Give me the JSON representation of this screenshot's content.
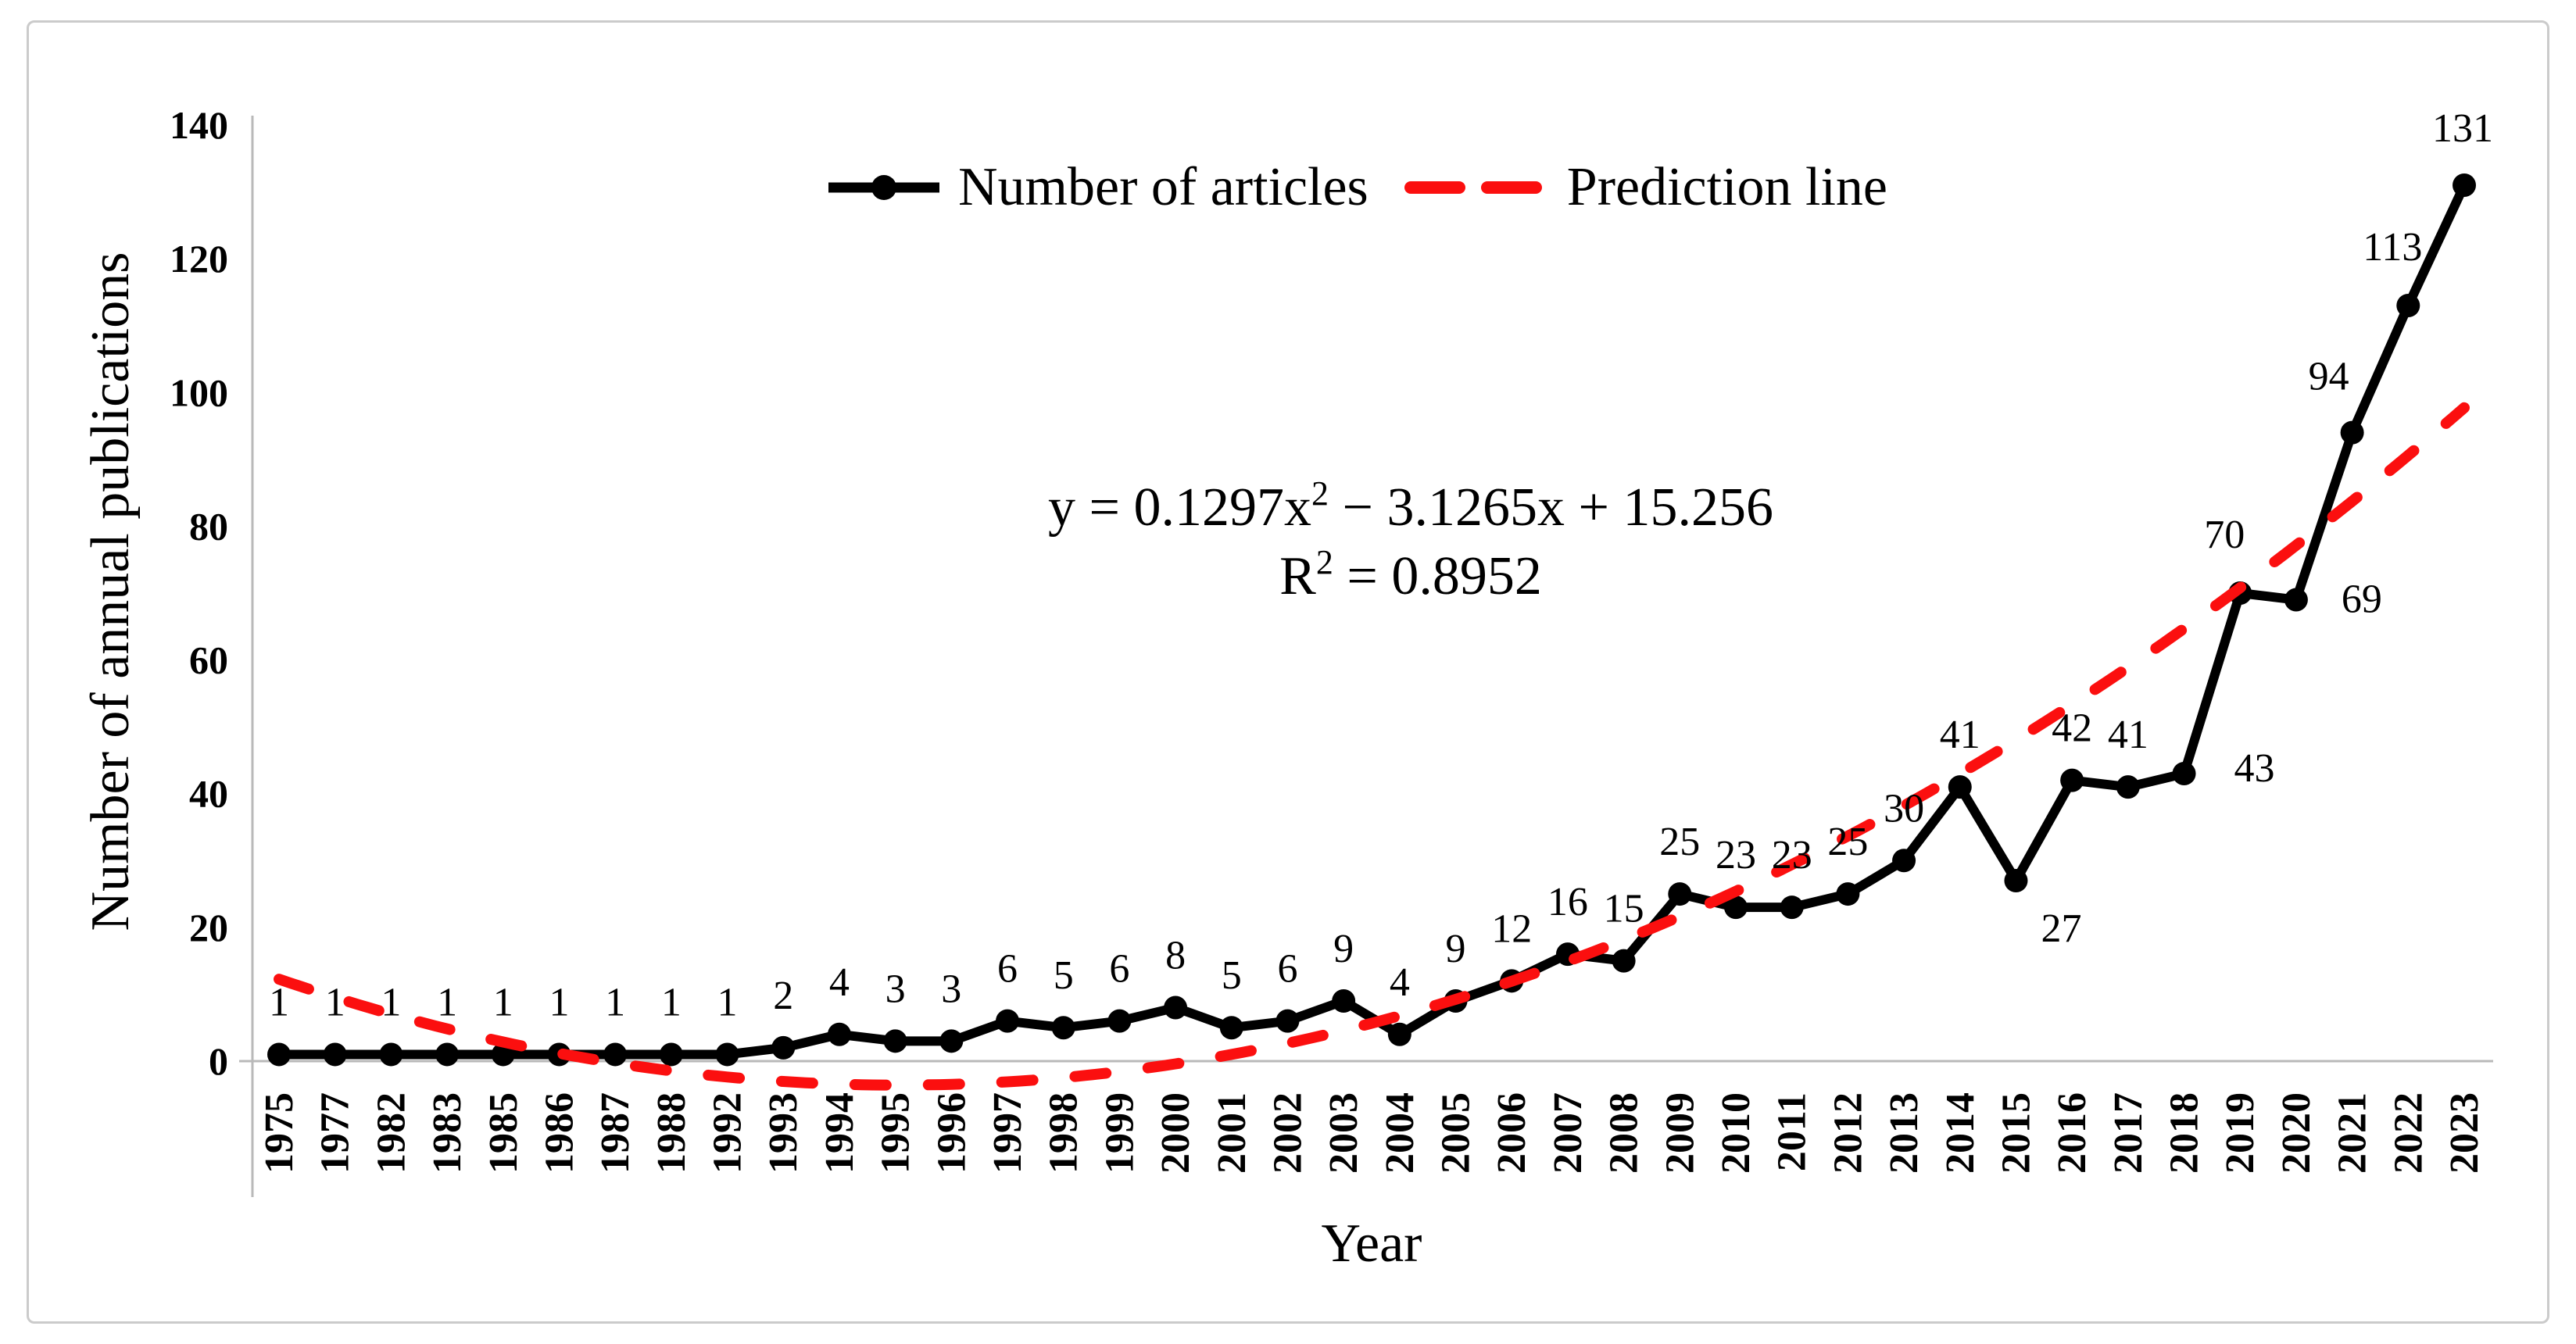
{
  "figure": {
    "background": "#ffffff",
    "border_color": "#cbcbcb"
  },
  "chart_data": {
    "type": "line",
    "title": "",
    "xlabel": "Year",
    "ylabel": "Number of annual publications",
    "ylim": [
      0,
      140
    ],
    "yticks": [
      0,
      20,
      40,
      60,
      80,
      100,
      120,
      140
    ],
    "grid": false,
    "legend_position": "top-center",
    "axis_color": "#b9b9b9",
    "categories": [
      "1975",
      "1977",
      "1982",
      "1983",
      "1985",
      "1986",
      "1987",
      "1988",
      "1992",
      "1993",
      "1994",
      "1995",
      "1996",
      "1997",
      "1998",
      "1999",
      "2000",
      "2001",
      "2002",
      "2003",
      "2004",
      "2005",
      "2006",
      "2007",
      "2008",
      "2009",
      "2010",
      "2011",
      "2012",
      "2013",
      "2014",
      "2015",
      "2016",
      "2017",
      "2018",
      "2019",
      "2020",
      "2021",
      "2022",
      "2023"
    ],
    "series": [
      {
        "name": "Number of articles",
        "type": "line-with-markers",
        "color": "#000000",
        "values": [
          1,
          1,
          1,
          1,
          1,
          1,
          1,
          1,
          1,
          2,
          4,
          3,
          3,
          6,
          5,
          6,
          8,
          5,
          6,
          9,
          4,
          9,
          12,
          16,
          15,
          25,
          23,
          23,
          25,
          30,
          41,
          27,
          42,
          41,
          43,
          70,
          69,
          94,
          113,
          131
        ]
      },
      {
        "name": "Prediction line",
        "type": "quadratic-trendline",
        "color": "#fb0f0f",
        "dashed": true,
        "coefficients": {
          "a": 0.1297,
          "b": -3.1265,
          "c": 15.256
        }
      }
    ],
    "annotations": {
      "equation": {
        "prefix": "y = 0.1297x",
        "sup": "2",
        "suffix": " − 3.1265x + 15.256"
      },
      "r_squared": {
        "prefix": "R",
        "sup": "2",
        "suffix": " = 0.8952"
      }
    },
    "label_offsets": {
      "31": [
        58,
        78
      ],
      "34": [
        90,
        10
      ],
      "35": [
        -20,
        -58
      ],
      "36": [
        84,
        16
      ],
      "37": [
        -30,
        -55
      ],
      "38": [
        -20,
        -58
      ],
      "39": [
        -2,
        -56
      ]
    }
  }
}
